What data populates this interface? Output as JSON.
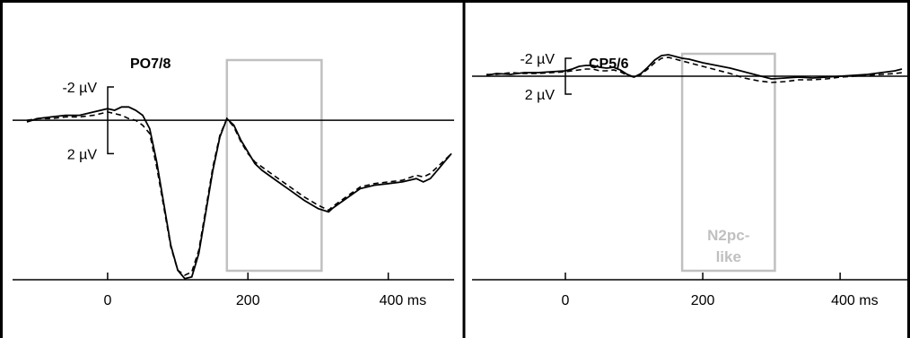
{
  "colors": {
    "foreground": "#000000",
    "window_box": "#c0c0c0",
    "background": "#ffffff"
  },
  "chart_data": [
    {
      "type": "line",
      "title": "PO7/8",
      "x_unit": "ms",
      "x_ticks": [
        0,
        200,
        400
      ],
      "x_tick_labels": [
        "0",
        "200",
        "400 ms"
      ],
      "y_inverted": true,
      "scale_bar": {
        "top_label": "-2 µV",
        "bottom_label": "2 µV",
        "top_value": -2,
        "bottom_value": 2
      },
      "xlim": [
        -115,
        490
      ],
      "ylim": [
        -2,
        10
      ],
      "annotation_window": {
        "x0": 170,
        "x1": 305,
        "label": ""
      },
      "series": [
        {
          "style": "solid",
          "x": [
            -115,
            -100,
            -80,
            -60,
            -40,
            -20,
            0,
            10,
            20,
            30,
            40,
            50,
            60,
            70,
            80,
            90,
            100,
            110,
            120,
            130,
            140,
            150,
            160,
            170,
            180,
            190,
            200,
            210,
            220,
            240,
            260,
            280,
            300,
            315,
            320,
            340,
            360,
            380,
            400,
            420,
            440,
            450,
            460,
            470,
            480,
            490
          ],
          "y": [
            0.1,
            -0.1,
            -0.2,
            -0.3,
            -0.3,
            -0.5,
            -0.7,
            -0.6,
            -0.8,
            -0.8,
            -0.6,
            -0.3,
            0.5,
            2.5,
            5.0,
            7.5,
            9.0,
            9.5,
            9.4,
            8.0,
            5.5,
            3.0,
            1.0,
            -0.1,
            0.3,
            1.2,
            1.9,
            2.6,
            3.0,
            3.6,
            4.2,
            4.8,
            5.3,
            5.5,
            5.3,
            4.7,
            4.1,
            3.9,
            3.8,
            3.7,
            3.5,
            3.7,
            3.5,
            3.0,
            2.5,
            2.0
          ]
        },
        {
          "style": "dashed",
          "x": [
            -115,
            -100,
            -80,
            -60,
            -40,
            -20,
            0,
            10,
            20,
            30,
            40,
            50,
            60,
            70,
            80,
            90,
            100,
            110,
            120,
            130,
            140,
            150,
            160,
            170,
            180,
            190,
            200,
            210,
            220,
            240,
            260,
            280,
            300,
            315,
            320,
            340,
            360,
            380,
            400,
            420,
            440,
            450,
            460,
            470,
            480,
            490
          ],
          "y": [
            0.0,
            -0.1,
            -0.1,
            -0.2,
            -0.2,
            -0.3,
            -0.5,
            -0.4,
            -0.3,
            -0.1,
            0.0,
            0.3,
            0.8,
            2.8,
            5.2,
            7.6,
            9.0,
            9.3,
            9.1,
            7.8,
            5.3,
            2.8,
            0.9,
            -0.1,
            0.4,
            1.3,
            2.0,
            2.5,
            2.8,
            3.4,
            4.0,
            4.6,
            5.1,
            5.4,
            5.2,
            4.6,
            4.0,
            3.8,
            3.7,
            3.6,
            3.3,
            3.4,
            3.2,
            2.8,
            2.4,
            2.0
          ]
        }
      ]
    },
    {
      "type": "line",
      "title": "CP5/6",
      "x_unit": "ms",
      "x_ticks": [
        0,
        200,
        400
      ],
      "x_tick_labels": [
        "0",
        "200",
        "400 ms"
      ],
      "y_inverted": true,
      "scale_bar": {
        "top_label": "-2 µV",
        "bottom_label": "2 µV",
        "top_value": -2,
        "bottom_value": 2
      },
      "xlim": [
        -115,
        490
      ],
      "ylim": [
        -2.5,
        8.5
      ],
      "annotation_window": {
        "x0": 170,
        "x1": 305,
        "label_lines": [
          "N2pc-",
          "like"
        ]
      },
      "series": [
        {
          "style": "solid",
          "x": [
            -115,
            -100,
            -80,
            -60,
            -40,
            -20,
            0,
            10,
            20,
            30,
            40,
            50,
            60,
            70,
            80,
            90,
            100,
            110,
            120,
            130,
            140,
            150,
            160,
            170,
            180,
            190,
            200,
            220,
            240,
            260,
            280,
            300,
            320,
            340,
            360,
            380,
            400,
            420,
            440,
            460,
            480,
            490
          ],
          "y": [
            -0.1,
            -0.3,
            -0.2,
            -0.4,
            -0.4,
            -0.5,
            -0.6,
            -0.8,
            -1.1,
            -1.2,
            -1.2,
            -1.0,
            -0.9,
            -1.0,
            -0.7,
            -0.2,
            0.1,
            -0.3,
            -1.0,
            -1.8,
            -2.3,
            -2.4,
            -2.2,
            -2.0,
            -1.9,
            -1.7,
            -1.5,
            -1.2,
            -0.9,
            -0.5,
            -0.1,
            0.3,
            0.2,
            0.1,
            0.2,
            0.1,
            0.0,
            -0.1,
            -0.2,
            -0.4,
            -0.6,
            -0.8
          ]
        },
        {
          "style": "dashed",
          "x": [
            -115,
            -100,
            -80,
            -60,
            -40,
            -20,
            0,
            10,
            20,
            30,
            40,
            50,
            60,
            70,
            80,
            90,
            100,
            110,
            120,
            130,
            140,
            150,
            160,
            170,
            180,
            190,
            200,
            220,
            240,
            260,
            280,
            300,
            320,
            340,
            360,
            380,
            400,
            420,
            440,
            460,
            480,
            490
          ],
          "y": [
            -0.2,
            -0.2,
            -0.4,
            -0.3,
            -0.3,
            -0.4,
            -0.5,
            -0.6,
            -0.7,
            -0.8,
            -0.8,
            -0.6,
            -0.6,
            -0.7,
            -0.5,
            -0.1,
            0.1,
            -0.2,
            -0.8,
            -1.5,
            -2.0,
            -2.1,
            -1.9,
            -1.7,
            -1.5,
            -1.3,
            -1.1,
            -0.7,
            -0.3,
            0.2,
            0.5,
            0.7,
            0.6,
            0.4,
            0.4,
            0.3,
            0.1,
            0.0,
            -0.1,
            -0.2,
            -0.3,
            -0.4
          ]
        }
      ]
    }
  ]
}
